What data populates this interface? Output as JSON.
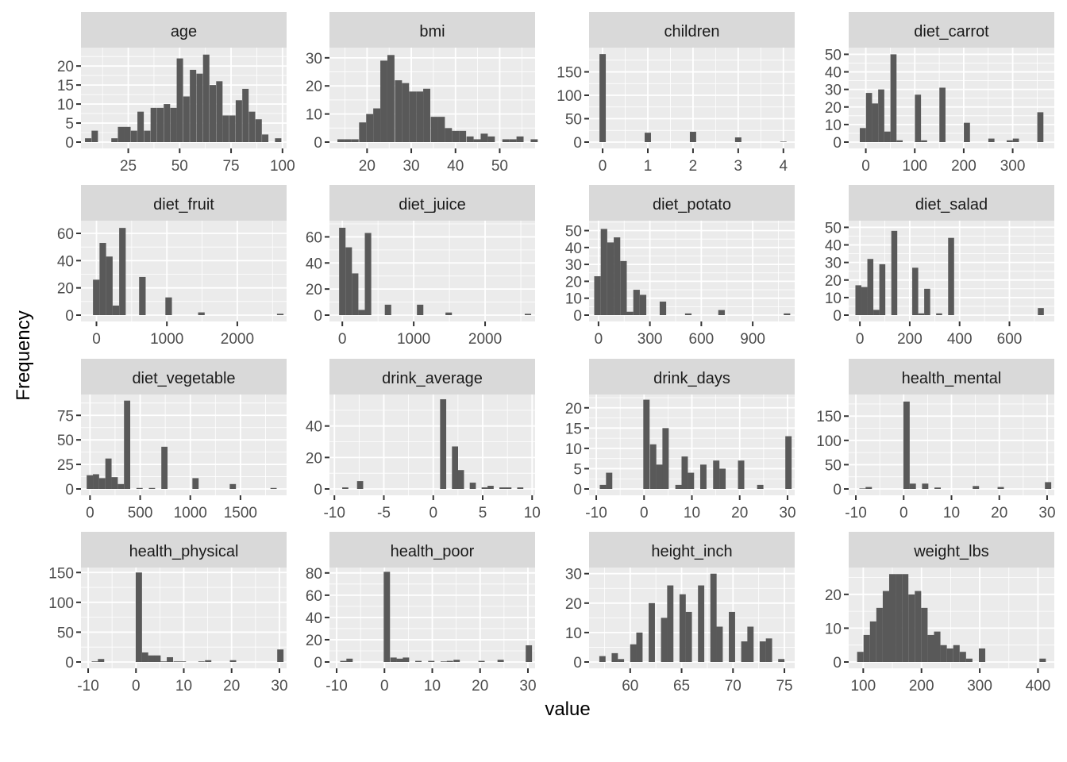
{
  "chart_data": {
    "type": "bar",
    "subtype": "faceted-histogram",
    "xlabel": "value",
    "ylabel": "Frequency",
    "grid": true,
    "colors": {
      "bar": "#595959",
      "panel": "#ebebeb",
      "strip": "#d9d9d9",
      "grid": "#ffffff",
      "tick_label": "#4d4d4d"
    },
    "panels": [
      {
        "title": "age",
        "xlim": [
          2,
          102
        ],
        "ylim": [
          0,
          24
        ],
        "xticks": [
          25,
          50,
          75,
          100
        ],
        "yticks": [
          0,
          5,
          10,
          15,
          20
        ],
        "bins": [
          [
            5.5,
            1
          ],
          [
            8.7,
            3
          ],
          [
            18.3,
            1
          ],
          [
            21.5,
            4
          ],
          [
            24.6,
            4
          ],
          [
            27.8,
            3
          ],
          [
            31,
            8
          ],
          [
            34.2,
            3
          ],
          [
            37.4,
            9
          ],
          [
            40.6,
            9
          ],
          [
            43.8,
            10
          ],
          [
            47,
            9
          ],
          [
            50.1,
            22
          ],
          [
            53.3,
            12
          ],
          [
            56.5,
            19
          ],
          [
            59.7,
            18
          ],
          [
            62.9,
            23
          ],
          [
            66.1,
            15
          ],
          [
            69.3,
            16
          ],
          [
            72.4,
            7
          ],
          [
            75.6,
            7
          ],
          [
            78.8,
            11
          ],
          [
            82,
            14
          ],
          [
            85.2,
            8
          ],
          [
            88.4,
            6
          ],
          [
            91.6,
            2
          ],
          [
            97.9,
            1
          ]
        ]
      },
      {
        "title": "bmi",
        "xlim": [
          11.5,
          58
        ],
        "ylim": [
          0,
          32.5
        ],
        "xticks": [
          20,
          30,
          40,
          50
        ],
        "yticks": [
          0,
          10,
          20,
          30
        ],
        "bins": [
          [
            14.1,
            1
          ],
          [
            15.7,
            1
          ],
          [
            17.3,
            1
          ],
          [
            19,
            7
          ],
          [
            20.6,
            10
          ],
          [
            22.2,
            12
          ],
          [
            23.8,
            29
          ],
          [
            25.4,
            31
          ],
          [
            27.1,
            22
          ],
          [
            28.7,
            21
          ],
          [
            30.3,
            18
          ],
          [
            31.9,
            18
          ],
          [
            33.5,
            19
          ],
          [
            35.2,
            9
          ],
          [
            36.8,
            9
          ],
          [
            38.4,
            5
          ],
          [
            40,
            4
          ],
          [
            41.6,
            4
          ],
          [
            43.3,
            2
          ],
          [
            44.9,
            1
          ],
          [
            46.5,
            3
          ],
          [
            48.1,
            2
          ],
          [
            51.4,
            1
          ],
          [
            53,
            1
          ],
          [
            54.6,
            2
          ],
          [
            57.8,
            1
          ]
        ]
      },
      {
        "title": "children",
        "xlim": [
          -0.3,
          4.25
        ],
        "ylim": [
          0,
          195
        ],
        "xticks": [
          0,
          1,
          2,
          3,
          4
        ],
        "yticks": [
          0,
          50,
          100,
          150
        ],
        "bins": [
          [
            0,
            188
          ],
          [
            1,
            20
          ],
          [
            2,
            22
          ],
          [
            3,
            10
          ],
          [
            4,
            1
          ]
        ],
        "binwidth": 0.14
      },
      {
        "title": "diet_carrot",
        "xlim": [
          -35,
          385
        ],
        "ylim": [
          0,
          52
        ],
        "xticks": [
          0,
          100,
          200,
          300
        ],
        "yticks": [
          0,
          10,
          20,
          30,
          40,
          50
        ],
        "bins": [
          [
            -6,
            8
          ],
          [
            6.5,
            28
          ],
          [
            19,
            22
          ],
          [
            31.5,
            30
          ],
          [
            44,
            6
          ],
          [
            56.5,
            50
          ],
          [
            69,
            1
          ],
          [
            106.5,
            27
          ],
          [
            119,
            1
          ],
          [
            156.5,
            31
          ],
          [
            206.5,
            11
          ],
          [
            256.5,
            2
          ],
          [
            294,
            1
          ],
          [
            306.5,
            2
          ],
          [
            356.5,
            17
          ]
        ],
        "binwidth": 12.5
      },
      {
        "title": "diet_fruit",
        "xlim": [
          -220,
          2700
        ],
        "ylim": [
          0,
          67
        ],
        "xticks": [
          0,
          1000,
          2000
        ],
        "yticks": [
          0,
          20,
          40,
          60
        ],
        "bins": [
          [
            -3,
            26
          ],
          [
            90,
            53
          ],
          [
            183,
            43
          ],
          [
            276,
            7
          ],
          [
            369,
            64
          ],
          [
            652,
            28
          ],
          [
            1025,
            13
          ],
          [
            1490,
            2
          ],
          [
            2610,
            1
          ]
        ],
        "binwidth": 93
      },
      {
        "title": "diet_juice",
        "xlim": [
          -180,
          2700
        ],
        "ylim": [
          0,
          70
        ],
        "xticks": [
          0,
          1000,
          2000
        ],
        "yticks": [
          0,
          20,
          40,
          60
        ],
        "bins": [
          [
            0,
            67
          ],
          [
            90,
            52
          ],
          [
            180,
            32
          ],
          [
            270,
            4
          ],
          [
            360,
            63
          ],
          [
            640,
            8
          ],
          [
            1090,
            8
          ],
          [
            1490,
            2
          ],
          [
            2600,
            1
          ]
        ],
        "binwidth": 90
      },
      {
        "title": "diet_potato",
        "xlim": [
          -55,
          1145
        ],
        "ylim": [
          0,
          54
        ],
        "xticks": [
          0,
          300,
          600,
          900
        ],
        "yticks": [
          0,
          10,
          20,
          30,
          40,
          50
        ],
        "bins": [
          [
            -6,
            23
          ],
          [
            32,
            51
          ],
          [
            70,
            43
          ],
          [
            108,
            46
          ],
          [
            146,
            32
          ],
          [
            184,
            2
          ],
          [
            222,
            15
          ],
          [
            260,
            12
          ],
          [
            376,
            8
          ],
          [
            524,
            1
          ],
          [
            718,
            3
          ],
          [
            1100,
            1
          ]
        ],
        "binwidth": 38
      },
      {
        "title": "diet_salad",
        "xlim": [
          -45,
          780
        ],
        "ylim": [
          0,
          52
        ],
        "xticks": [
          0,
          200,
          400,
          600
        ],
        "yticks": [
          0,
          10,
          20,
          30,
          40,
          50
        ],
        "bins": [
          [
            -6,
            17
          ],
          [
            18,
            16
          ],
          [
            42,
            32
          ],
          [
            66,
            3
          ],
          [
            90,
            29
          ],
          [
            138,
            48
          ],
          [
            222,
            27
          ],
          [
            246,
            1
          ],
          [
            270,
            15
          ],
          [
            318,
            1
          ],
          [
            366,
            44
          ],
          [
            726,
            4
          ]
        ],
        "binwidth": 24
      },
      {
        "title": "diet_vegetable",
        "xlim": [
          -90,
          1960
        ],
        "ylim": [
          0,
          93
        ],
        "xticks": [
          0,
          500,
          1000,
          1500
        ],
        "yticks": [
          0,
          25,
          50,
          75
        ],
        "bins": [
          [
            -2,
            14
          ],
          [
            60,
            15
          ],
          [
            122,
            11
          ],
          [
            184,
            31
          ],
          [
            246,
            12
          ],
          [
            308,
            5
          ],
          [
            370,
            90
          ],
          [
            494,
            1
          ],
          [
            618,
            1
          ],
          [
            742,
            43
          ],
          [
            1052,
            11
          ],
          [
            1424,
            5
          ],
          [
            1830,
            1
          ]
        ],
        "binwidth": 62
      },
      {
        "title": "drink_average",
        "xlim": [
          -10.5,
          10.3
        ],
        "ylim": [
          0,
          58
        ],
        "xticks": [
          -10,
          -5,
          0,
          5,
          10
        ],
        "yticks": [
          0,
          20,
          40
        ],
        "bins": [
          [
            -8.9,
            1
          ],
          [
            -7.4,
            5
          ],
          [
            1,
            57
          ],
          [
            2.2,
            27
          ],
          [
            2.8,
            12
          ],
          [
            4,
            4
          ],
          [
            5.2,
            1
          ],
          [
            5.8,
            2
          ],
          [
            7,
            1
          ],
          [
            7.6,
            1
          ],
          [
            8.8,
            1
          ]
        ],
        "binwidth": 0.62
      },
      {
        "title": "drink_days",
        "xlim": [
          -11.5,
          31.5
        ],
        "ylim": [
          0,
          22.5
        ],
        "xticks": [
          -10,
          0,
          10,
          20,
          30
        ],
        "yticks": [
          0,
          5,
          10,
          15,
          20
        ],
        "bins": [
          [
            -8.6,
            1
          ],
          [
            -7.3,
            4
          ],
          [
            0.5,
            22
          ],
          [
            1.9,
            11
          ],
          [
            3.2,
            6
          ],
          [
            4.5,
            15
          ],
          [
            7.2,
            1
          ],
          [
            8.5,
            8
          ],
          [
            9.8,
            4
          ],
          [
            12.4,
            6
          ],
          [
            15.1,
            7
          ],
          [
            16.4,
            5
          ],
          [
            20.3,
            7
          ],
          [
            24.3,
            1
          ],
          [
            30.2,
            13
          ]
        ],
        "binwidth": 1.32
      },
      {
        "title": "health_mental",
        "xlim": [
          -11.5,
          31.5
        ],
        "ylim": [
          0,
          188
        ],
        "xticks": [
          -10,
          0,
          10,
          20,
          30
        ],
        "yticks": [
          0,
          50,
          100,
          150
        ],
        "bins": [
          [
            -8.6,
            1
          ],
          [
            -7.3,
            4
          ],
          [
            0.6,
            180
          ],
          [
            1.9,
            11
          ],
          [
            4.5,
            11
          ],
          [
            7.1,
            3
          ],
          [
            15.1,
            6
          ],
          [
            20.3,
            4
          ],
          [
            30.2,
            14
          ]
        ],
        "binwidth": 1.32
      },
      {
        "title": "health_physical",
        "xlim": [
          -11.5,
          31.5
        ],
        "ylim": [
          0,
          153
        ],
        "xticks": [
          -10,
          0,
          10,
          20,
          30
        ],
        "yticks": [
          0,
          50,
          100,
          150
        ],
        "bins": [
          [
            -8.6,
            1
          ],
          [
            -7.3,
            5
          ],
          [
            0.6,
            150
          ],
          [
            1.9,
            16
          ],
          [
            3.2,
            11
          ],
          [
            4.5,
            11
          ],
          [
            5.8,
            1
          ],
          [
            7.1,
            8
          ],
          [
            8.5,
            1
          ],
          [
            9.8,
            1
          ],
          [
            13.7,
            1
          ],
          [
            15.1,
            3
          ],
          [
            20.3,
            3
          ],
          [
            30.2,
            21
          ]
        ],
        "binwidth": 1.32
      },
      {
        "title": "health_poor",
        "xlim": [
          -11.5,
          31.5
        ],
        "ylim": [
          0,
          82
        ],
        "xticks": [
          -10,
          0,
          10,
          20,
          30
        ],
        "yticks": [
          0,
          20,
          40,
          60,
          80
        ],
        "bins": [
          [
            -8.6,
            1
          ],
          [
            -7.3,
            3
          ],
          [
            0.5,
            81
          ],
          [
            1.9,
            4
          ],
          [
            3.2,
            3
          ],
          [
            4.5,
            4
          ],
          [
            7.1,
            1
          ],
          [
            9.8,
            1
          ],
          [
            12.4,
            0.5
          ],
          [
            13.7,
            1
          ],
          [
            15.1,
            2
          ],
          [
            20.3,
            1
          ],
          [
            24.3,
            2
          ],
          [
            30.2,
            15
          ]
        ],
        "binwidth": 1.32
      },
      {
        "title": "height_inch",
        "xlim": [
          56,
          76
        ],
        "ylim": [
          0,
          31
        ],
        "xticks": [
          60,
          65,
          70,
          75
        ],
        "yticks": [
          0,
          10,
          20,
          30
        ],
        "bins": [
          [
            57.3,
            2
          ],
          [
            58.5,
            3
          ],
          [
            59.1,
            1
          ],
          [
            60.3,
            6
          ],
          [
            60.9,
            10
          ],
          [
            62.1,
            20
          ],
          [
            63.3,
            15
          ],
          [
            63.9,
            26
          ],
          [
            65.1,
            23
          ],
          [
            65.7,
            17
          ],
          [
            66.9,
            26
          ],
          [
            68.1,
            30
          ],
          [
            68.7,
            12
          ],
          [
            69.9,
            17
          ],
          [
            71.1,
            7
          ],
          [
            71.7,
            12
          ],
          [
            72.9,
            7
          ],
          [
            73.5,
            8
          ],
          [
            74.7,
            1
          ]
        ],
        "binwidth": 0.61
      },
      {
        "title": "weight_lbs",
        "xlim": [
          75,
          428
        ],
        "ylim": [
          0,
          27
        ],
        "xticks": [
          100,
          200,
          300,
          400
        ],
        "yticks": [
          0,
          10,
          20
        ],
        "bins": [
          [
            95,
            3
          ],
          [
            106,
            8
          ],
          [
            117,
            12
          ],
          [
            128,
            16
          ],
          [
            139,
            21
          ],
          [
            150,
            26
          ],
          [
            161,
            26
          ],
          [
            172,
            26
          ],
          [
            183,
            20
          ],
          [
            194,
            21
          ],
          [
            205,
            16
          ],
          [
            216,
            8
          ],
          [
            227,
            9
          ],
          [
            238,
            5
          ],
          [
            249,
            4
          ],
          [
            260,
            5
          ],
          [
            271,
            3
          ],
          [
            282,
            1
          ],
          [
            304,
            4
          ],
          [
            408,
            1
          ]
        ],
        "binwidth": 11
      }
    ]
  }
}
